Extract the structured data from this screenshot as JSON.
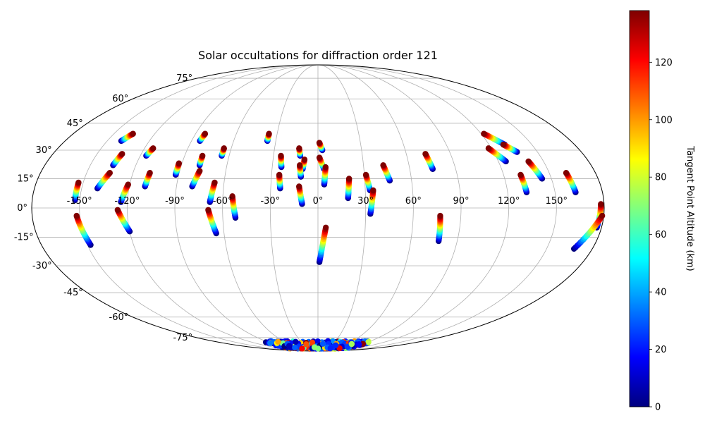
{
  "chart_data": {
    "type": "scatter",
    "projection": "mollweide",
    "title": "Solar occultations for diffraction order 121",
    "xlabel": "",
    "ylabel": "",
    "grid": true,
    "x_ticks": [
      "-150°",
      "-120°",
      "-90°",
      "-60°",
      "-30°",
      "0°",
      "30°",
      "60°",
      "90°",
      "120°",
      "150°"
    ],
    "y_ticks": [
      "75°",
      "60°",
      "45°",
      "30°",
      "15°",
      "0°",
      "-15°",
      "-30°",
      "-45°",
      "-60°",
      "-75°"
    ],
    "xlim": [
      -180,
      180
    ],
    "ylim": [
      -90,
      90
    ],
    "colorbar": {
      "label": "Tangent Point Altitude (km)",
      "ticks": [
        "0",
        "20",
        "40",
        "60",
        "80",
        "100",
        "120"
      ],
      "range": [
        0,
        138
      ],
      "colormap": [
        "#00007f",
        "#0000ff",
        "#007fff",
        "#00ffff",
        "#7fff7f",
        "#ffff00",
        "#ff7f00",
        "#ff0000",
        "#7f0000"
      ]
    },
    "tracks": [
      {
        "lon_start": -153,
        "lat_start": 13,
        "lon_end": -153,
        "lat_end": 4
      },
      {
        "lon_start": -152,
        "lat_start": -4,
        "lon_end": -148,
        "lat_end": -19
      },
      {
        "lon_start": -136,
        "lat_start": 39,
        "lon_end": -140,
        "lat_end": 35
      },
      {
        "lon_start": -133,
        "lat_start": 28,
        "lon_end": -135,
        "lat_end": 22
      },
      {
        "lon_start": -135,
        "lat_start": 18,
        "lon_end": -140,
        "lat_end": 10
      },
      {
        "lon_start": -121,
        "lat_start": 12,
        "lon_end": -124,
        "lat_end": 3
      },
      {
        "lon_start": -126,
        "lat_start": -1,
        "lon_end": -120,
        "lat_end": -12
      },
      {
        "lon_start": -114,
        "lat_start": 31,
        "lon_end": -116,
        "lat_end": 27
      },
      {
        "lon_start": -109,
        "lat_start": 18,
        "lon_end": -110,
        "lat_end": 11
      },
      {
        "lon_start": -92,
        "lat_start": 23,
        "lon_end": -92,
        "lat_end": 17
      },
      {
        "lon_start": -83,
        "lat_start": 39,
        "lon_end": -84,
        "lat_end": 35
      },
      {
        "lon_start": -78,
        "lat_start": 27,
        "lon_end": -78,
        "lat_end": 22
      },
      {
        "lon_start": -77,
        "lat_start": 19,
        "lon_end": -80,
        "lat_end": 11
      },
      {
        "lon_start": -65,
        "lat_start": 31,
        "lon_end": -65,
        "lat_end": 27
      },
      {
        "lon_start": -66,
        "lat_start": 13,
        "lon_end": -68,
        "lat_end": 3
      },
      {
        "lon_start": -69,
        "lat_start": -1,
        "lon_end": -65,
        "lat_end": -13
      },
      {
        "lon_start": -54,
        "lat_start": 6,
        "lon_end": -52,
        "lat_end": -5
      },
      {
        "lon_start": -36,
        "lat_start": 39,
        "lon_end": -36,
        "lat_end": 35
      },
      {
        "lon_start": -25,
        "lat_start": 27,
        "lon_end": -24,
        "lat_end": 21
      },
      {
        "lon_start": -25,
        "lat_start": 17,
        "lon_end": -24,
        "lat_end": 10
      },
      {
        "lon_start": -13,
        "lat_start": 31,
        "lon_end": -12,
        "lat_end": 27
      },
      {
        "lon_start": -9,
        "lat_start": 25,
        "lon_end": -10,
        "lat_end": 20
      },
      {
        "lon_start": -12,
        "lat_start": 22,
        "lon_end": -11,
        "lat_end": 16
      },
      {
        "lon_start": -12,
        "lat_start": 11,
        "lon_end": -10,
        "lat_end": 2
      },
      {
        "lon_start": 1,
        "lat_start": 34,
        "lon_end": 3,
        "lat_end": 30
      },
      {
        "lon_start": 1,
        "lat_start": 26,
        "lon_end": 4,
        "lat_end": 20
      },
      {
        "lon_start": 5,
        "lat_start": 21,
        "lon_end": 4,
        "lat_end": 12
      },
      {
        "lon_start": 5,
        "lat_start": -10,
        "lon_end": 1,
        "lat_end": -28
      },
      {
        "lon_start": 20,
        "lat_start": 15,
        "lon_end": 19,
        "lat_end": 5
      },
      {
        "lon_start": 31,
        "lat_start": 17,
        "lon_end": 33,
        "lat_end": 9
      },
      {
        "lon_start": 35,
        "lat_start": 9,
        "lon_end": 33,
        "lat_end": -3
      },
      {
        "lon_start": 43,
        "lat_start": 22,
        "lon_end": 46,
        "lat_end": 14
      },
      {
        "lon_start": 73,
        "lat_start": 28,
        "lon_end": 75,
        "lat_end": 20
      },
      {
        "lon_start": 77,
        "lat_start": -4,
        "lon_end": 78,
        "lat_end": -17
      },
      {
        "lon_start": 122,
        "lat_start": 39,
        "lon_end": 131,
        "lat_end": 33
      },
      {
        "lon_start": 130,
        "lat_start": 33,
        "lon_end": 136,
        "lat_end": 29
      },
      {
        "lon_start": 118,
        "lat_start": 31,
        "lon_end": 125,
        "lat_end": 24
      },
      {
        "lon_start": 131,
        "lat_start": 17,
        "lon_end": 132,
        "lat_end": 8
      },
      {
        "lon_start": 140,
        "lat_start": 24,
        "lon_end": 144,
        "lat_end": 15
      },
      {
        "lon_start": 161,
        "lat_start": 18,
        "lon_end": 163,
        "lat_end": 8
      },
      {
        "lon_start": 178,
        "lat_start": 2,
        "lon_end": 177,
        "lat_end": -10
      },
      {
        "lon_start": 179,
        "lat_start": -4,
        "lon_end": 168,
        "lat_end": -21
      }
    ],
    "south_cluster": {
      "lon_min": -95,
      "lon_max": 95,
      "lat_min": -78,
      "lat_max": -86
    }
  }
}
